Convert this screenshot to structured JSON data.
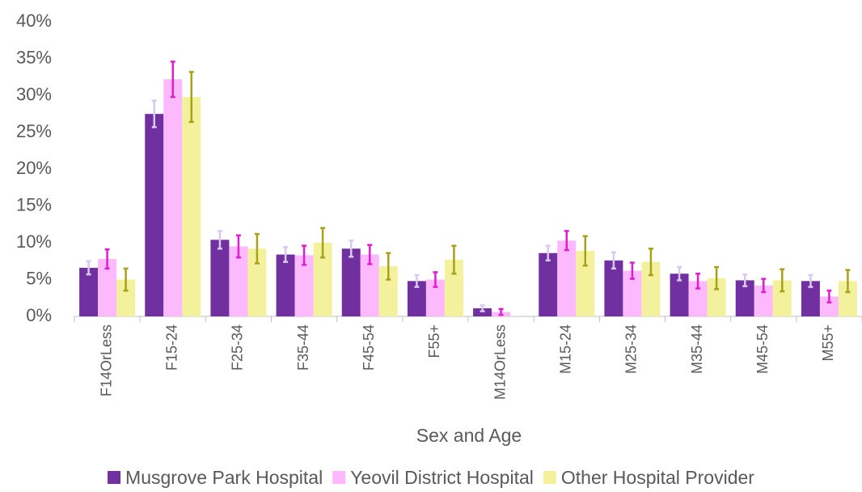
{
  "chart_data": {
    "type": "bar",
    "x_label": "Sex and Age",
    "categories": [
      "F14OrLess",
      "F15-24",
      "F25-34",
      "F35-44",
      "F45-54",
      "F55+",
      "M14OrLess",
      "M15-24",
      "M25-34",
      "M35-44",
      "M45-54",
      "M55+"
    ],
    "series": [
      {
        "name": "Musgrove Park Hospital",
        "color": "#7030a0",
        "error_color": "#d9c9ef",
        "values": [
          6.6,
          27.5,
          10.4,
          8.4,
          9.2,
          4.8,
          1.1,
          8.6,
          7.6,
          5.8,
          4.9,
          4.8
        ],
        "errors": [
          0.9,
          1.8,
          1.2,
          1.0,
          1.1,
          0.8,
          0.4,
          1.0,
          1.1,
          0.9,
          0.8,
          0.8
        ]
      },
      {
        "name": "Yeovil District Hospital",
        "color": "#fdb9fd",
        "error_color": "#e01ed0",
        "values": [
          7.8,
          32.2,
          9.5,
          8.3,
          8.4,
          5.0,
          0.6,
          10.3,
          6.2,
          4.8,
          4.2,
          2.7
        ],
        "errors": [
          1.3,
          2.4,
          1.5,
          1.3,
          1.3,
          1.0,
          0.4,
          1.3,
          1.1,
          1.0,
          0.9,
          0.8
        ]
      },
      {
        "name": "Other Hospital Provider",
        "color": "#f3f19c",
        "error_color": "#a8a11a",
        "values": [
          5.0,
          29.8,
          9.2,
          10.0,
          6.8,
          7.7,
          0,
          8.9,
          7.4,
          5.2,
          4.9,
          4.8
        ],
        "errors": [
          1.5,
          3.4,
          2.0,
          2.0,
          1.8,
          1.9,
          0,
          2.0,
          1.8,
          1.5,
          1.5,
          1.5
        ]
      }
    ],
    "ylim": [
      0,
      40
    ],
    "yticks": [
      {
        "value": 0,
        "label": "0%"
      },
      {
        "value": 5,
        "label": "5%"
      },
      {
        "value": 10,
        "label": "10%"
      },
      {
        "value": 15,
        "label": "15%"
      },
      {
        "value": 20,
        "label": "20%"
      },
      {
        "value": 25,
        "label": "25%"
      },
      {
        "value": 30,
        "label": "30%"
      },
      {
        "value": 35,
        "label": "35%"
      },
      {
        "value": 40,
        "label": "40%"
      }
    ],
    "grid": false,
    "legend": "bottom"
  }
}
